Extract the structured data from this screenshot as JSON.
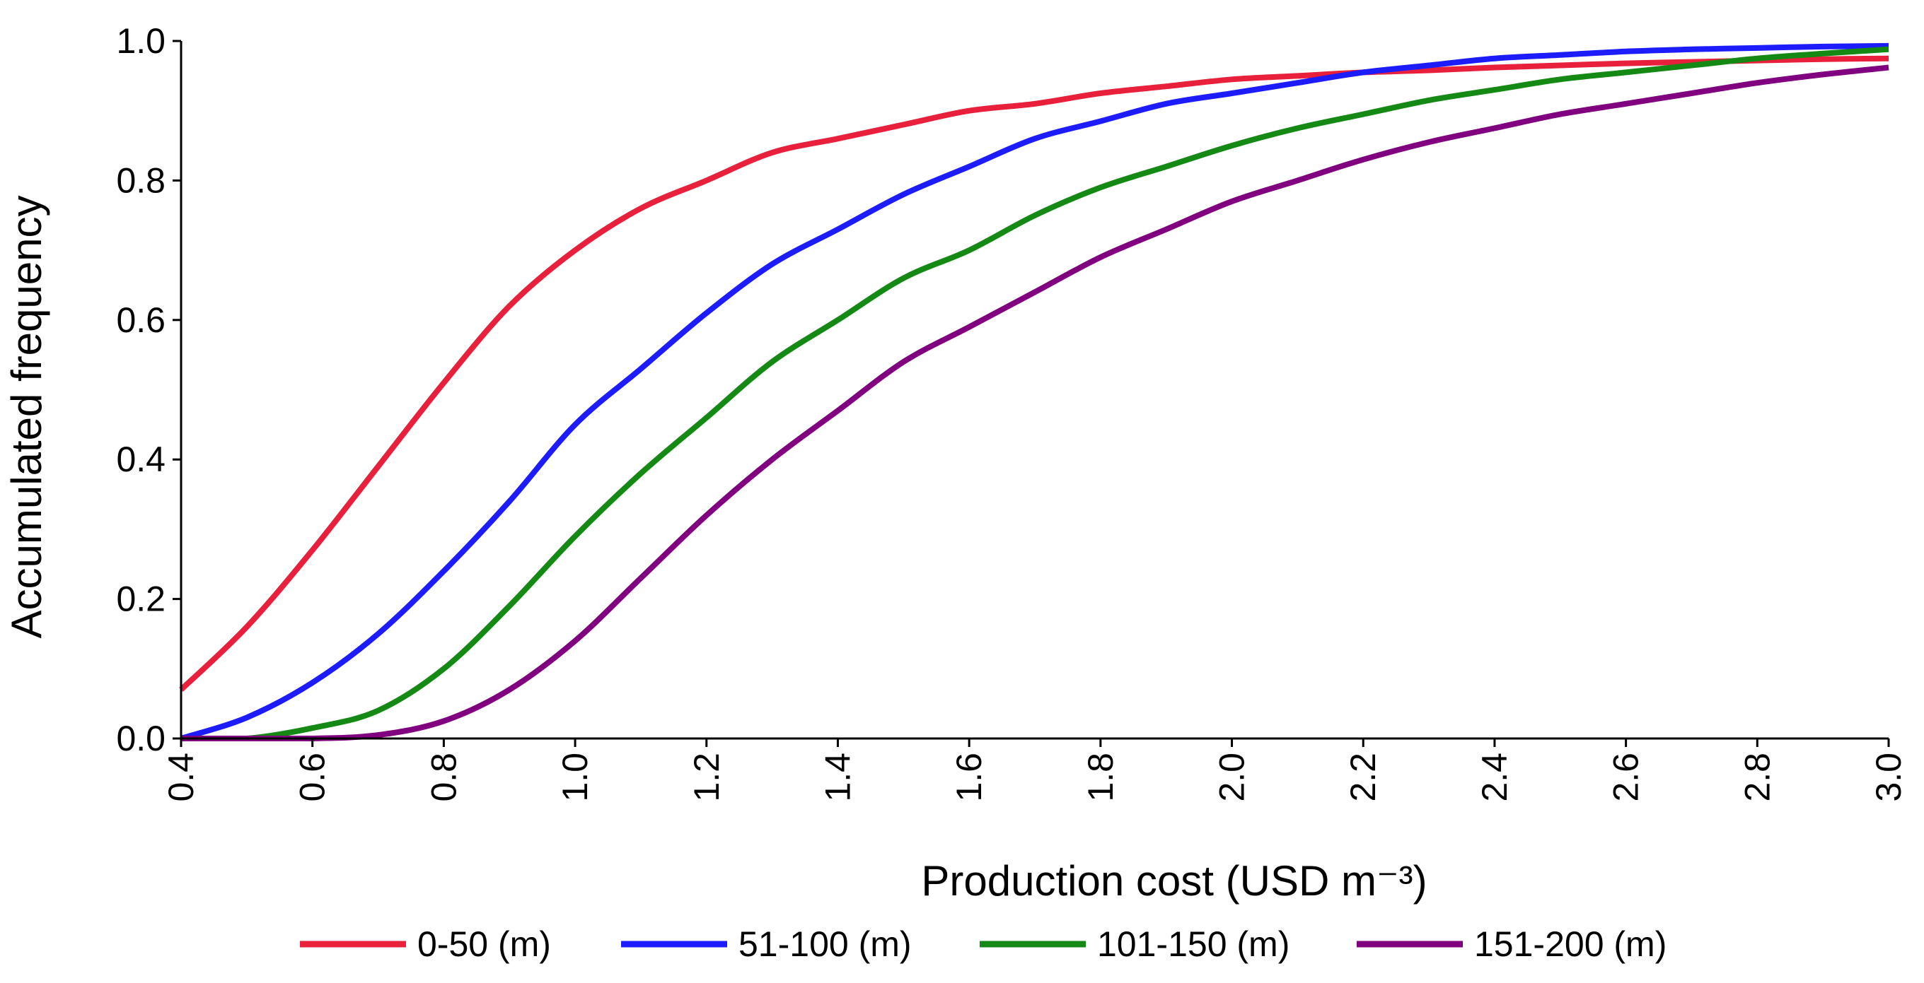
{
  "chart_data": {
    "type": "line",
    "title": "",
    "xlabel": "Production cost (USD m⁻³)",
    "ylabel": "Accumulated frequency",
    "xlim": [
      0.4,
      3.0
    ],
    "ylim": [
      0.0,
      1.0
    ],
    "x_ticks": [
      "0.4",
      "0.6",
      "0.8",
      "1.0",
      "1.2",
      "1.4",
      "1.6",
      "1.8",
      "2.0",
      "2.2",
      "2.4",
      "2.6",
      "2.8",
      "3.0"
    ],
    "y_ticks": [
      "0.0",
      "0.2",
      "0.4",
      "0.6",
      "0.8",
      "1.0"
    ],
    "grid": false,
    "legend_position": "bottom",
    "x": [
      0.4,
      0.5,
      0.6,
      0.7,
      0.8,
      0.9,
      1.0,
      1.1,
      1.2,
      1.3,
      1.4,
      1.5,
      1.6,
      1.7,
      1.8,
      1.9,
      2.0,
      2.1,
      2.2,
      2.3,
      2.4,
      2.5,
      2.6,
      2.7,
      2.8,
      2.9,
      3.0
    ],
    "series": [
      {
        "name": "0-50 (m)",
        "color": "#e8203c",
        "values": [
          0.07,
          0.16,
          0.27,
          0.39,
          0.51,
          0.62,
          0.7,
          0.76,
          0.8,
          0.84,
          0.86,
          0.88,
          0.9,
          0.91,
          0.925,
          0.935,
          0.945,
          0.95,
          0.955,
          0.958,
          0.962,
          0.965,
          0.968,
          0.97,
          0.972,
          0.974,
          0.975
        ]
      },
      {
        "name": "51-100 (m)",
        "color": "#1c1cff",
        "values": [
          0.0,
          0.03,
          0.08,
          0.15,
          0.24,
          0.34,
          0.45,
          0.53,
          0.61,
          0.68,
          0.73,
          0.78,
          0.82,
          0.86,
          0.885,
          0.91,
          0.925,
          0.94,
          0.955,
          0.965,
          0.975,
          0.98,
          0.985,
          0.988,
          0.99,
          0.992,
          0.993
        ]
      },
      {
        "name": "101-150 (m)",
        "color": "#148a14",
        "values": [
          0.0,
          0.0,
          0.015,
          0.04,
          0.1,
          0.19,
          0.29,
          0.38,
          0.46,
          0.54,
          0.6,
          0.66,
          0.7,
          0.75,
          0.79,
          0.82,
          0.85,
          0.875,
          0.895,
          0.915,
          0.93,
          0.945,
          0.955,
          0.965,
          0.975,
          0.982,
          0.988
        ]
      },
      {
        "name": "151-200 (m)",
        "color": "#800080",
        "values": [
          0.0,
          0.0,
          0.0,
          0.005,
          0.025,
          0.07,
          0.14,
          0.23,
          0.32,
          0.4,
          0.47,
          0.54,
          0.59,
          0.64,
          0.69,
          0.73,
          0.77,
          0.8,
          0.83,
          0.855,
          0.875,
          0.895,
          0.91,
          0.925,
          0.94,
          0.952,
          0.962
        ]
      }
    ]
  }
}
